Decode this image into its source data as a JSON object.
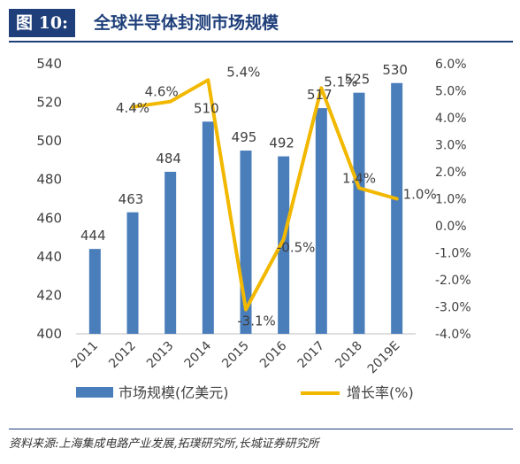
{
  "header": {
    "figure_label": "图 10:",
    "title": "全球半导体封测市场规模"
  },
  "source": "资料来源:上海集成电路产业发展,拓璞研究所,长城证券研究所",
  "colors": {
    "bar": "#4a7ebb",
    "line": "#f2b800",
    "title": "#1f3f7a"
  },
  "chart_data": {
    "type": "bar",
    "categories": [
      "2011",
      "2012",
      "2013",
      "2014",
      "2015",
      "2016",
      "2017",
      "2018",
      "2019E"
    ],
    "series": [
      {
        "name": "市场规模(亿美元)",
        "type": "bar",
        "axis": "left",
        "values": [
          444,
          463,
          484,
          510,
          495,
          492,
          517,
          525,
          530
        ],
        "labels": [
          "444",
          "463",
          "484",
          "510",
          "495",
          "492",
          "517",
          "525",
          "530"
        ]
      },
      {
        "name": "增长率(%)",
        "type": "line",
        "axis": "right",
        "values": [
          null,
          4.4,
          4.6,
          5.4,
          -3.1,
          -0.5,
          5.1,
          1.4,
          1.0
        ],
        "labels": [
          "",
          "4.4%",
          "4.6%",
          "5.4%",
          "-3.1%",
          "-0.5%",
          "5.1%",
          "1.4%",
          "1.0%"
        ]
      }
    ],
    "ylim_left": [
      400,
      540
    ],
    "yticks_left": [
      "400",
      "420",
      "440",
      "460",
      "480",
      "500",
      "520",
      "540"
    ],
    "ylim_right": [
      -4.0,
      6.0
    ],
    "yticks_right": [
      "-4.0%",
      "-3.0%",
      "-2.0%",
      "-1.0%",
      "0.0%",
      "1.0%",
      "2.0%",
      "3.0%",
      "4.0%",
      "5.0%",
      "6.0%"
    ],
    "legend_position": "bottom",
    "grid": false
  }
}
